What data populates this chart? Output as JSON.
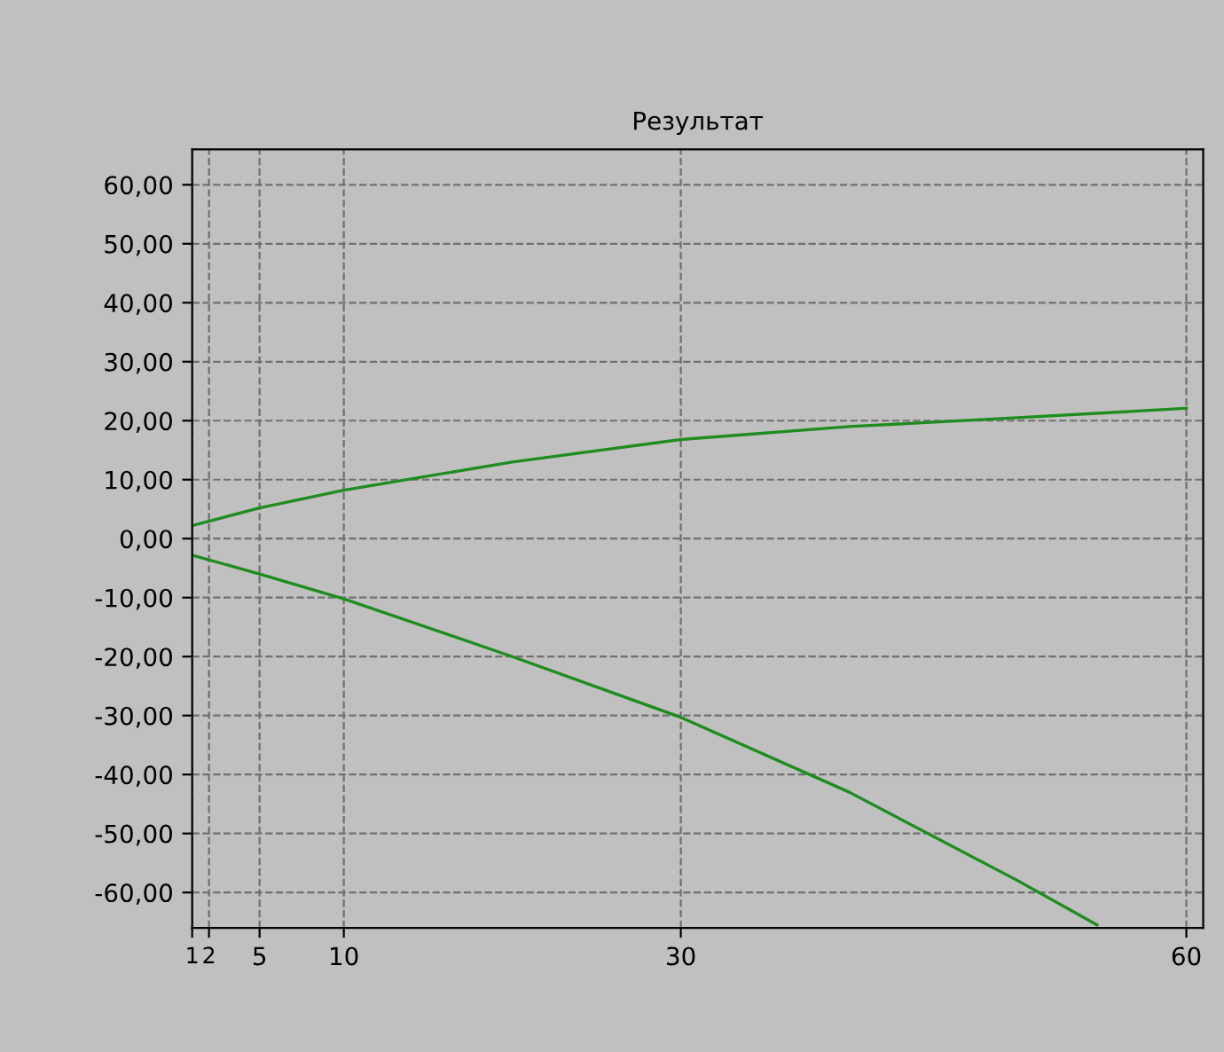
{
  "chart_data": {
    "type": "line",
    "title": "Результат",
    "xlim": [
      1,
      61
    ],
    "xticks": [
      1,
      2,
      5,
      10,
      30,
      60
    ],
    "ylim": [
      -66,
      66
    ],
    "yticks": [
      {
        "value": -60,
        "label": "-60,00"
      },
      {
        "value": -50,
        "label": "-50,00"
      },
      {
        "value": -40,
        "label": "-40,00"
      },
      {
        "value": -30,
        "label": "-30,00"
      },
      {
        "value": -20,
        "label": "-20,00"
      },
      {
        "value": -10,
        "label": "-10,00"
      },
      {
        "value": 0,
        "label": "0,00"
      },
      {
        "value": 10,
        "label": "10,00"
      },
      {
        "value": 20,
        "label": "20,00"
      },
      {
        "value": 30,
        "label": "30,00"
      },
      {
        "value": 40,
        "label": "40,00"
      },
      {
        "value": 50,
        "label": "50,00"
      },
      {
        "value": 60,
        "label": "60,00"
      }
    ],
    "grid": true,
    "line_style": "solid",
    "marker": "none",
    "series": [
      {
        "color": "#1e8c1e",
        "x": [
          1,
          5,
          10,
          20,
          30,
          40,
          50,
          60
        ],
        "values": [
          2.2,
          5.2,
          8.2,
          13,
          16.8,
          19,
          20.5,
          22.1
        ]
      },
      {
        "color": "#1e8c1e",
        "x": [
          1,
          5,
          10,
          20,
          30,
          40,
          50,
          54.7
        ],
        "values": [
          -2.8,
          -6,
          -10.2,
          -20,
          -30.3,
          -43,
          -58,
          -65.5
        ]
      }
    ]
  }
}
